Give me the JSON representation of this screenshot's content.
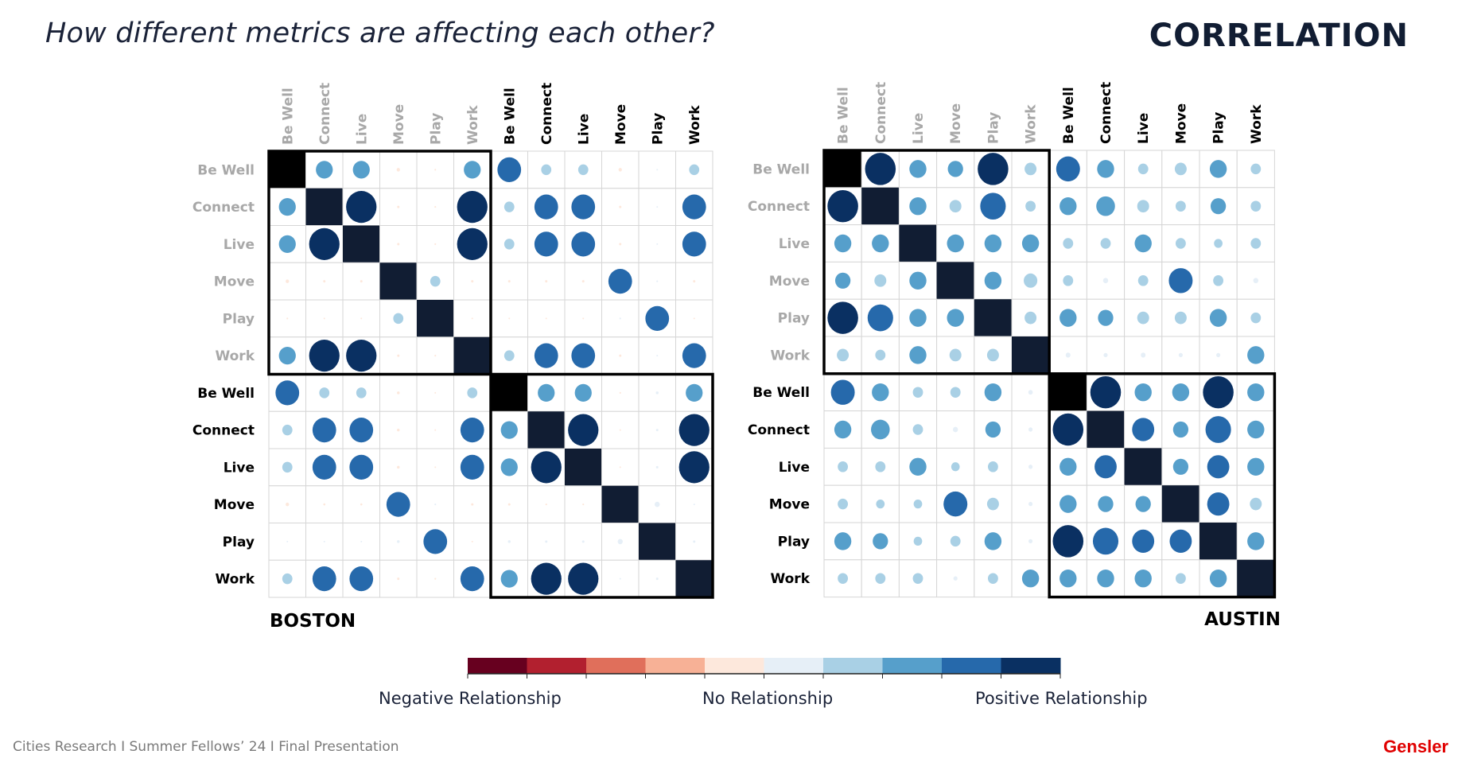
{
  "header": {
    "title": "How different metrics are affecting each other?",
    "headline": "CORRELATION"
  },
  "footer": {
    "text": "Cities Research I Summer Fellows’ 24 I Final Presentation",
    "brand": "Gensler"
  },
  "legend": {
    "negative_label": "Negative Relationship",
    "neutral_label": "No Relationship",
    "positive_label": "Positive Relationship",
    "bins": [
      -1.0,
      -0.8,
      -0.6,
      -0.4,
      -0.2,
      0.0,
      0.2,
      0.4,
      0.6,
      0.8,
      1.0
    ],
    "colors": [
      "#67001f",
      "#b2202f",
      "#e06f5b",
      "#f7b196",
      "#fde8dc",
      "#e6eff7",
      "#a9d0e5",
      "#569fcb",
      "#2669ab",
      "#0a3062"
    ],
    "diagonal_color": "#111d33",
    "block_start_color": "#000000"
  },
  "chart_data": [
    {
      "type": "heatmap",
      "title": "BOSTON",
      "value_range": [
        -1,
        1
      ],
      "encoding": "circle size and color = correlation",
      "label_groups": [
        {
          "name": "group-1",
          "color": "#a8a8a8"
        },
        {
          "name": "group-2",
          "color": "#000000"
        }
      ],
      "row_labels": [
        "Be Well",
        "Connect",
        "Live",
        "Move",
        "Play",
        "Work",
        "Be Well",
        "Connect",
        "Live",
        "Move",
        "Play",
        "Work"
      ],
      "col_labels": [
        "Be Well",
        "Connect",
        "Live",
        "Move",
        "Play",
        "Work",
        "Be Well",
        "Connect",
        "Live",
        "Move",
        "Play",
        "Work"
      ],
      "values": [
        [
          1,
          0.5,
          0.5,
          -0.1,
          -0.05,
          0.5,
          0.7,
          0.3,
          0.3,
          -0.1,
          0.02,
          0.3
        ],
        [
          0.5,
          1,
          0.9,
          -0.07,
          -0.05,
          0.9,
          0.3,
          0.7,
          0.7,
          -0.07,
          0.01,
          0.7
        ],
        [
          0.5,
          0.9,
          1,
          -0.07,
          -0.05,
          0.9,
          0.3,
          0.7,
          0.7,
          -0.07,
          0.01,
          0.7
        ],
        [
          -0.1,
          -0.07,
          -0.07,
          1,
          0.3,
          -0.07,
          -0.07,
          -0.07,
          -0.07,
          0.7,
          0.05,
          -0.07
        ],
        [
          -0.05,
          -0.04,
          -0.04,
          0.3,
          1,
          -0.04,
          -0.04,
          -0.04,
          -0.04,
          0.05,
          0.7,
          -0.04
        ],
        [
          0.5,
          0.9,
          0.9,
          -0.07,
          -0.05,
          1,
          0.3,
          0.7,
          0.7,
          -0.07,
          0.02,
          0.7
        ],
        [
          0.7,
          0.3,
          0.3,
          -0.08,
          -0.04,
          0.3,
          1,
          0.5,
          0.5,
          -0.05,
          0.08,
          0.5
        ],
        [
          0.3,
          0.7,
          0.7,
          -0.08,
          -0.04,
          0.7,
          0.5,
          1,
          0.9,
          -0.04,
          0.07,
          0.9
        ],
        [
          0.3,
          0.7,
          0.7,
          -0.08,
          -0.04,
          0.7,
          0.5,
          0.9,
          1,
          -0.04,
          0.07,
          0.9
        ],
        [
          -0.1,
          -0.06,
          -0.06,
          0.7,
          0.05,
          -0.07,
          -0.07,
          -0.05,
          -0.05,
          1,
          0.15,
          0.01
        ],
        [
          0.02,
          0.01,
          0.01,
          0.08,
          0.7,
          -0.03,
          0.08,
          0.07,
          0.07,
          0.15,
          1,
          0.07
        ],
        [
          0.3,
          0.7,
          0.7,
          -0.07,
          -0.05,
          0.7,
          0.5,
          0.9,
          0.9,
          0.01,
          0.07,
          1
        ]
      ],
      "highlight_blocks": [
        [
          0,
          5
        ],
        [
          6,
          11
        ]
      ]
    },
    {
      "type": "heatmap",
      "title": "AUSTIN",
      "value_range": [
        -1,
        1
      ],
      "encoding": "circle size and color = correlation",
      "label_groups": [
        {
          "name": "group-1",
          "color": "#a8a8a8"
        },
        {
          "name": "group-2",
          "color": "#000000"
        }
      ],
      "row_labels": [
        "Be Well",
        "Connect",
        "Live",
        "Move",
        "Play",
        "Work",
        "Be Well",
        "Connect",
        "Live",
        "Move",
        "Play",
        "Work"
      ],
      "col_labels": [
        "Be Well",
        "Connect",
        "Live",
        "Move",
        "Play",
        "Work",
        "Be Well",
        "Connect",
        "Live",
        "Move",
        "Play",
        "Work"
      ],
      "values": [
        [
          1,
          0.9,
          0.5,
          0.45,
          0.9,
          0.35,
          0.7,
          0.5,
          0.3,
          0.35,
          0.5,
          0.3
        ],
        [
          0.9,
          1,
          0.5,
          0.35,
          0.75,
          0.3,
          0.5,
          0.55,
          0.35,
          0.3,
          0.45,
          0.3
        ],
        [
          0.5,
          0.5,
          1,
          0.5,
          0.5,
          0.5,
          0.3,
          0.3,
          0.5,
          0.3,
          0.25,
          0.3
        ],
        [
          0.45,
          0.35,
          0.5,
          1,
          0.5,
          0.4,
          0.3,
          0.15,
          0.3,
          0.7,
          0.3,
          0.15
        ],
        [
          0.9,
          0.75,
          0.5,
          0.5,
          1,
          0.35,
          0.5,
          0.45,
          0.35,
          0.35,
          0.5,
          0.3
        ],
        [
          0.35,
          0.3,
          0.5,
          0.35,
          0.35,
          1,
          0.14,
          0.12,
          0.14,
          0.12,
          0.12,
          0.5
        ],
        [
          0.7,
          0.5,
          0.3,
          0.3,
          0.5,
          0.13,
          1,
          0.9,
          0.5,
          0.5,
          0.9,
          0.5
        ],
        [
          0.5,
          0.55,
          0.3,
          0.15,
          0.45,
          0.12,
          0.9,
          1,
          0.65,
          0.45,
          0.75,
          0.5
        ],
        [
          0.3,
          0.3,
          0.5,
          0.25,
          0.3,
          0.12,
          0.5,
          0.65,
          1,
          0.45,
          0.65,
          0.5
        ],
        [
          0.3,
          0.25,
          0.25,
          0.7,
          0.35,
          0.12,
          0.5,
          0.45,
          0.45,
          1,
          0.65,
          0.35
        ],
        [
          0.5,
          0.45,
          0.25,
          0.3,
          0.5,
          0.12,
          0.9,
          0.75,
          0.65,
          0.65,
          1,
          0.5
        ],
        [
          0.3,
          0.3,
          0.3,
          0.12,
          0.3,
          0.5,
          0.5,
          0.5,
          0.5,
          0.3,
          0.5,
          1
        ]
      ],
      "highlight_blocks": [
        [
          0,
          5
        ],
        [
          6,
          11
        ]
      ]
    }
  ]
}
